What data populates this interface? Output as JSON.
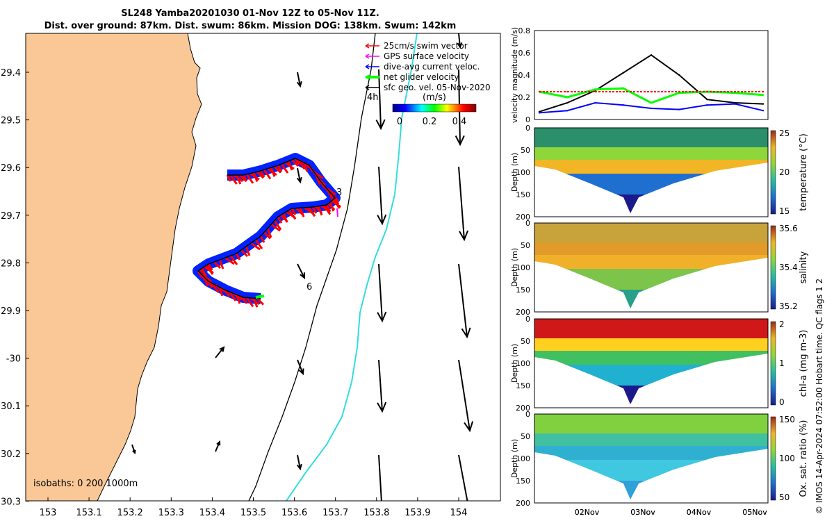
{
  "header": {
    "title_line1": "SL248 Yamba20201030 01-Nov 12Z to 05-Nov 11Z.",
    "title_line2": "Dist. over ground: 87km. Dist. swum: 86km. Mission DOG: 138km. Swum: 142km"
  },
  "map": {
    "lat_ticks": [
      "29.4",
      "29.5",
      "29.6",
      "29.7",
      "29.8",
      "29.9",
      "-30",
      "30.1",
      "30.2",
      "30.3"
    ],
    "lon_ticks": [
      "153",
      "153.1",
      "153.2",
      "153.3",
      "153.4",
      "153.5",
      "153.6",
      "153.7",
      "153.8",
      "153.9",
      "154"
    ],
    "legend": [
      {
        "label": "25cm/s swim vector",
        "color": "#ff0000"
      },
      {
        "label": "GPS surface velocity",
        "color": "#ff00ff"
      },
      {
        "label": "dive-avg current veloc.",
        "color": "#0000ff"
      },
      {
        "label": "net glider velocity",
        "color": "#00ff00"
      },
      {
        "label": "sfc geo. vel. 05-Nov-2020",
        "color": "#000000"
      }
    ],
    "colorbar_label": "(m/s)",
    "colorbar_ticks": [
      "0",
      "0.2",
      "0.4"
    ],
    "isobaths_label": "isobaths: 0   200  1000m",
    "annotations": [
      "4h",
      "3",
      "6"
    ],
    "land_color": "#f9c896"
  },
  "chart_data": [
    {
      "type": "line",
      "panel": "velocity",
      "ylabel": "velocity magnitude (m/s)",
      "ylim": [
        0,
        0.8
      ],
      "y_ticks": [
        "0",
        "0.2",
        "0.4",
        "0.6",
        "0.8"
      ],
      "x_ticks": [
        "02Nov",
        "03Nov",
        "04Nov",
        "05Nov"
      ],
      "x_days": [
        0,
        0.5,
        1,
        1.5,
        2,
        2.5,
        3,
        3.5,
        4
      ],
      "series": [
        {
          "name": "black",
          "color": "#000000",
          "values": [
            0.07,
            0.15,
            0.26,
            0.42,
            0.58,
            0.4,
            0.18,
            0.15,
            0.14
          ]
        },
        {
          "name": "green",
          "color": "#00ff00",
          "values": [
            0.25,
            0.2,
            0.27,
            0.28,
            0.15,
            0.24,
            0.25,
            0.24,
            0.22
          ]
        },
        {
          "name": "blue",
          "color": "#0000ff",
          "values": [
            0.06,
            0.08,
            0.15,
            0.13,
            0.1,
            0.09,
            0.13,
            0.14,
            0.08
          ]
        },
        {
          "name": "red",
          "color": "#ff0000",
          "values": [
            0.25,
            0.25,
            0.25,
            0.25,
            0.25,
            0.25,
            0.25,
            0.25,
            0.25
          ]
        }
      ]
    },
    {
      "type": "heatmap",
      "panel": "temperature",
      "ylabel": "Depth (m)",
      "y_ticks": [
        "0",
        "50",
        "100",
        "150",
        "200"
      ],
      "colorbar_label": "temperature (°C)",
      "colorbar_ticks": [
        "25",
        "20",
        "15"
      ]
    },
    {
      "type": "heatmap",
      "panel": "salinity",
      "ylabel": "Depth (m)",
      "y_ticks": [
        "0",
        "50",
        "100",
        "150",
        "200"
      ],
      "colorbar_label": "salinity",
      "colorbar_ticks": [
        "35.6",
        "35.4",
        "35.2"
      ]
    },
    {
      "type": "heatmap",
      "panel": "chl-a",
      "ylabel": "Depth (m)",
      "y_ticks": [
        "0",
        "50",
        "100",
        "150",
        "200"
      ],
      "colorbar_label": "chl-a (mg m-3)",
      "colorbar_ticks": [
        "2",
        "1",
        "0"
      ]
    },
    {
      "type": "heatmap",
      "panel": "oxygen",
      "ylabel": "Depth (m)",
      "y_ticks": [
        "0",
        "50",
        "100",
        "150",
        "200"
      ],
      "x_ticks": [
        "02Nov",
        "03Nov",
        "04Nov",
        "05Nov"
      ],
      "colorbar_label": "Ox. sat. ratio (%)",
      "colorbar_ticks": [
        "150",
        "100",
        "50"
      ]
    }
  ],
  "credit": "© IMOS 14-Apr-2024 07:52:00 Hobart time. QC flags 1  2"
}
